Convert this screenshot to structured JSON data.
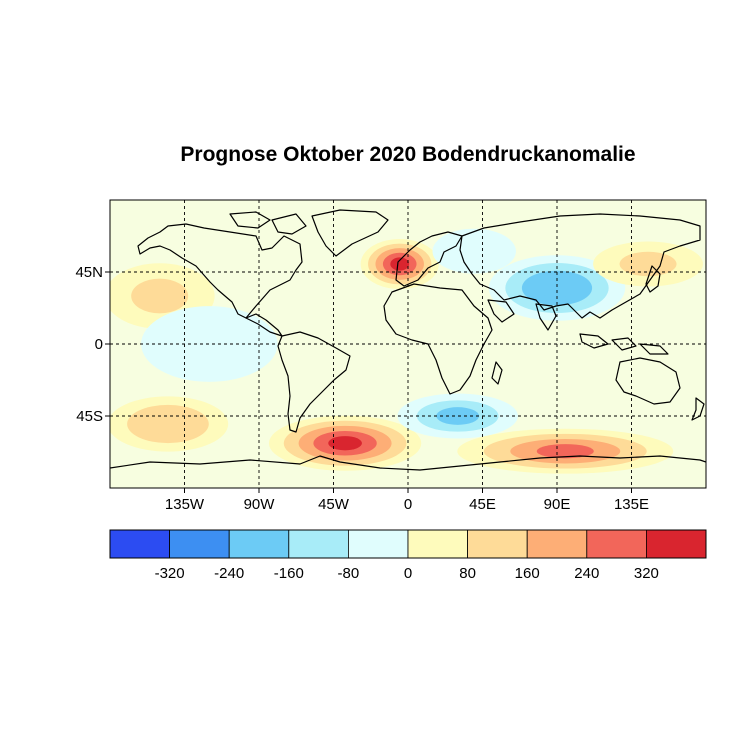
{
  "title": "Prognose Oktober 2020 Bodendruckanomalie",
  "map": {
    "lon_range": [
      -180,
      180
    ],
    "lat_range": [
      -90,
      90
    ],
    "gridlines": "dashed",
    "lon_ticks": [
      {
        "lon": -135,
        "label": "135W"
      },
      {
        "lon": -90,
        "label": "90W"
      },
      {
        "lon": -45,
        "label": "45W"
      },
      {
        "lon": 0,
        "label": "0"
      },
      {
        "lon": 45,
        "label": "45E"
      },
      {
        "lon": 90,
        "label": "90E"
      },
      {
        "lon": 135,
        "label": "135E"
      }
    ],
    "lat_ticks": [
      {
        "lat": 45,
        "label": "45N"
      },
      {
        "lat": 0,
        "label": "0"
      },
      {
        "lat": -45,
        "label": "45S"
      }
    ]
  },
  "colorbar": {
    "colors": [
      "#2c4cf2",
      "#3d8ff2",
      "#6ccbf5",
      "#a8ecf8",
      "#e0fdfd",
      "#fefbbc",
      "#fedb98",
      "#fdae76",
      "#f2665a",
      "#d9252f"
    ],
    "tick_labels": [
      "-320",
      "-240",
      "-160",
      "-80",
      "0",
      "80",
      "160",
      "240",
      "320"
    ]
  },
  "anomaly_regions": [
    {
      "name": "north-atlantic-high",
      "lon": -5,
      "lat": 50,
      "rlon": 14,
      "rlat": 9,
      "value": 340
    },
    {
      "name": "south-atlantic-ring-high",
      "lon": -38,
      "lat": -62,
      "rlon": 28,
      "rlat": 10,
      "value": 330
    },
    {
      "name": "indian-ocean-ring-high",
      "lon": 95,
      "lat": -67,
      "rlon": 40,
      "rlat": 8,
      "value": 260
    },
    {
      "name": "south-pacific-high",
      "lon": -145,
      "lat": -50,
      "rlon": 22,
      "rlat": 10,
      "value": 140
    },
    {
      "name": "south-indian-low",
      "lon": 30,
      "lat": -45,
      "rlon": 22,
      "rlat": 8,
      "value": -170
    },
    {
      "name": "asia-low",
      "lon": 90,
      "lat": 35,
      "rlon": 25,
      "rlat": 12,
      "value": -200
    },
    {
      "name": "northern-pacific-high",
      "lon": 145,
      "lat": 50,
      "rlon": 20,
      "rlat": 8,
      "value": 100
    },
    {
      "name": "eastern-pacific-high",
      "lon": -150,
      "lat": 30,
      "rlon": 20,
      "rlat": 12,
      "value": 90
    },
    {
      "name": "western-russia-low",
      "lon": 40,
      "lat": 58,
      "rlon": 15,
      "rlat": 8,
      "value": -80
    },
    {
      "name": "tropical-pacific-low",
      "lon": -120,
      "lat": 0,
      "rlon": 25,
      "rlat": 14,
      "value": -20
    }
  ]
}
